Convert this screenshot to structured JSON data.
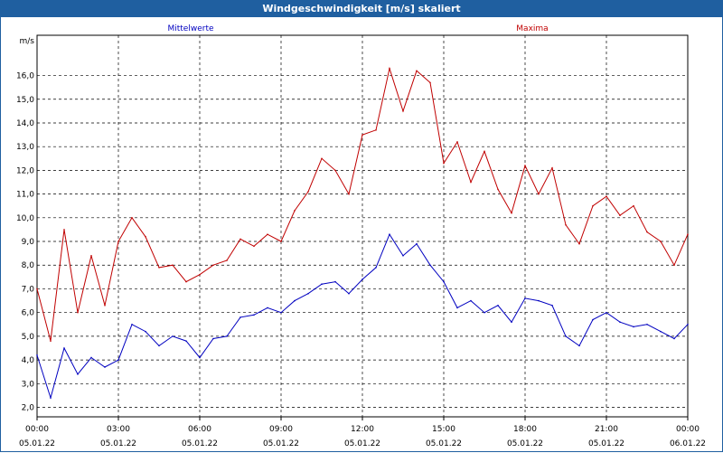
{
  "window": {
    "title": "Windgeschwindigkeit [m/s] skaliert"
  },
  "chart_data": {
    "type": "line",
    "title": "Windgeschwindigkeit [m/s] skaliert",
    "ylabel": "m/s",
    "xlabel": "",
    "ylim": [
      1.6,
      17.7
    ],
    "xlim": [
      0,
      24
    ],
    "grid": true,
    "y_ticks": [
      "2,0",
      "3,0",
      "4,0",
      "5,0",
      "6,0",
      "7,0",
      "8,0",
      "9,0",
      "10,0",
      "11,0",
      "12,0",
      "13,0",
      "14,0",
      "15,0",
      "16,0"
    ],
    "x_ticks": [
      {
        "time": "00:00",
        "date": "05.01.22"
      },
      {
        "time": "03:00",
        "date": "05.01.22"
      },
      {
        "time": "06:00",
        "date": "05.01.22"
      },
      {
        "time": "09:00",
        "date": "05.01.22"
      },
      {
        "time": "12:00",
        "date": "05.01.22"
      },
      {
        "time": "15:00",
        "date": "05.01.22"
      },
      {
        "time": "18:00",
        "date": "05.01.22"
      },
      {
        "time": "21:00",
        "date": "05.01.22"
      },
      {
        "time": "00:00",
        "date": "06.01.22"
      }
    ],
    "series": [
      {
        "name": "Mittelwerte",
        "color": "#0000c0",
        "x": [
          0,
          0.5,
          1,
          1.5,
          2,
          2.5,
          3,
          3.5,
          4,
          4.5,
          5,
          5.5,
          6,
          6.5,
          7,
          7.5,
          8,
          8.5,
          9,
          9.5,
          10,
          10.5,
          11,
          11.5,
          12,
          12.5,
          13,
          13.5,
          14,
          14.5,
          15,
          15.5,
          16,
          16.5,
          17,
          17.5,
          18,
          18.5,
          19,
          19.5,
          20,
          20.5,
          21,
          21.5,
          22,
          22.5,
          23,
          23.5,
          24
        ],
        "values": [
          4.2,
          2.4,
          4.5,
          3.4,
          4.1,
          3.7,
          4.0,
          5.5,
          5.2,
          4.6,
          5.0,
          4.8,
          4.1,
          4.9,
          5.0,
          5.8,
          5.9,
          6.2,
          6.0,
          6.5,
          6.8,
          7.2,
          7.3,
          6.8,
          7.4,
          7.9,
          9.3,
          8.4,
          8.9,
          8.0,
          7.3,
          6.2,
          6.5,
          6.0,
          6.3,
          5.6,
          6.6,
          6.5,
          6.3,
          5.0,
          4.6,
          5.7,
          6.0,
          5.6,
          5.4,
          5.5,
          5.2,
          4.9,
          5.5
        ]
      },
      {
        "name": "Maxima",
        "color": "#c00000",
        "x": [
          0,
          0.5,
          1,
          1.5,
          2,
          2.5,
          3,
          3.5,
          4,
          4.5,
          5,
          5.5,
          6,
          6.5,
          7,
          7.5,
          8,
          8.5,
          9,
          9.5,
          10,
          10.5,
          11,
          11.5,
          12,
          12.5,
          13,
          13.5,
          14,
          14.5,
          15,
          15.5,
          16,
          16.5,
          17,
          17.5,
          18,
          18.5,
          19,
          19.5,
          20,
          20.5,
          21,
          21.5,
          22,
          22.5,
          23,
          23.5,
          24
        ],
        "values": [
          7.0,
          4.8,
          9.5,
          6.0,
          8.4,
          6.3,
          9.0,
          10.0,
          9.2,
          7.9,
          8.0,
          7.3,
          7.6,
          8.0,
          8.2,
          9.1,
          8.8,
          9.3,
          9.0,
          10.3,
          11.1,
          12.5,
          12.0,
          11.0,
          13.5,
          13.7,
          16.3,
          14.5,
          16.2,
          15.7,
          12.3,
          13.2,
          11.5,
          12.8,
          11.2,
          10.2,
          12.2,
          11.0,
          12.1,
          9.7,
          8.9,
          10.5,
          10.9,
          10.1,
          10.5,
          9.4,
          9.0,
          8.0,
          9.3
        ]
      }
    ]
  }
}
